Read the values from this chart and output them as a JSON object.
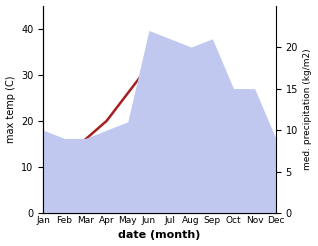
{
  "months": [
    "Jan",
    "Feb",
    "Mar",
    "Apr",
    "May",
    "Jun",
    "Jul",
    "Aug",
    "Sep",
    "Oct",
    "Nov",
    "Dec"
  ],
  "x": [
    0,
    1,
    2,
    3,
    4,
    5,
    6,
    7,
    8,
    9,
    10,
    11
  ],
  "temp": [
    13,
    13,
    16,
    20,
    26,
    32,
    35,
    35,
    31,
    26,
    20,
    14
  ],
  "precip": [
    10,
    9,
    9,
    10,
    11,
    22,
    21,
    20,
    21,
    15,
    15,
    9
  ],
  "temp_color": "#a52020",
  "precip_fill_color": "#c0c8f0",
  "xlabel": "date (month)",
  "ylabel_left": "max temp (C)",
  "ylabel_right": "med. precipitation (kg/m2)",
  "ylim_left": [
    0,
    45
  ],
  "ylim_right": [
    0,
    25
  ],
  "yticks_left": [
    0,
    10,
    20,
    30,
    40
  ],
  "yticks_right": [
    0,
    5,
    10,
    15,
    20
  ],
  "background_color": "#ffffff"
}
